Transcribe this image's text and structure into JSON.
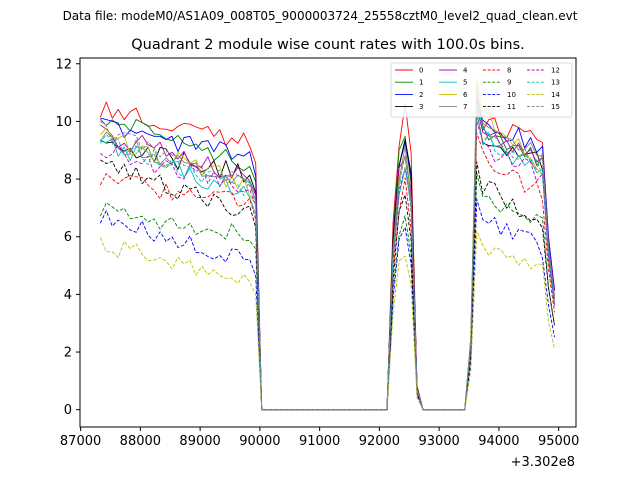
{
  "chart_data": {
    "type": "line",
    "suptitle": "Data file: modeM0/AS1A09_008T05_9000003724_25558cztM0_level2_quad_clean.evt",
    "title": "Quadrant 2 module wise count rates with 100.0s bins.",
    "xlabel": "",
    "ylabel": "",
    "x_offset_label": "+3.302e8",
    "xlim": [
      86990,
      95290
    ],
    "ylim": [
      -0.6,
      12.2
    ],
    "xticks": [
      87000,
      88000,
      89000,
      90000,
      91000,
      92000,
      93000,
      94000,
      95000
    ],
    "yticks": [
      0,
      2,
      4,
      6,
      8,
      10,
      12
    ],
    "grid": false,
    "legend_position": "top-right",
    "segments": [
      {
        "x_start": 87330,
        "x_end": 89930,
        "step": 100
      },
      {
        "x_start": 90030,
        "x_end": 92130,
        "zero": true
      },
      {
        "x_start": 92130,
        "x_end": 92630,
        "step": 100
      },
      {
        "x_start": 92730,
        "x_end": 93430,
        "zero": true
      },
      {
        "x_start": 93430,
        "x_end": 94930,
        "step": 100
      }
    ],
    "series": [
      {
        "name": "0",
        "color": "#ff0000",
        "dashed": false,
        "level_a": 10.5,
        "level_a_end": 9.2,
        "peak_b": 10.5,
        "peak_c": 11.0,
        "level_c_end": 9.2
      },
      {
        "name": "1",
        "color": "#008000",
        "dashed": false,
        "level_a": 10.2,
        "level_a_end": 8.5,
        "peak_b": 9.8,
        "peak_c": 10.8,
        "level_c_end": 8.6
      },
      {
        "name": "2",
        "color": "#0000ff",
        "dashed": false,
        "level_a": 9.9,
        "level_a_end": 8.7,
        "peak_b": 9.5,
        "peak_c": 10.8,
        "level_c_end": 9.2
      },
      {
        "name": "3",
        "color": "#000000",
        "dashed": false,
        "level_a": 9.2,
        "level_a_end": 8.1,
        "peak_b": 9.6,
        "peak_c": 10.3,
        "level_c_end": 8.5
      },
      {
        "name": "4",
        "color": "#bf00bf",
        "dashed": false,
        "level_a": 9.6,
        "level_a_end": 8.0,
        "peak_b": 9.0,
        "peak_c": 10.5,
        "level_c_end": 8.8
      },
      {
        "name": "5",
        "color": "#00bfbf",
        "dashed": false,
        "level_a": 9.3,
        "level_a_end": 7.3,
        "peak_b": 8.4,
        "peak_c": 10.7,
        "level_c_end": 8.0
      },
      {
        "name": "6",
        "color": "#bfbf00",
        "dashed": false,
        "level_a": 9.5,
        "level_a_end": 7.7,
        "peak_b": 8.8,
        "peak_c": 11.5,
        "level_c_end": 8.5
      },
      {
        "name": "7",
        "color": "#808080",
        "dashed": false,
        "level_a": 9.4,
        "level_a_end": 7.8,
        "peak_b": 9.0,
        "peak_c": 11.3,
        "level_c_end": 8.7
      },
      {
        "name": "8",
        "color": "#ff0000",
        "dashed": true,
        "level_a": 8.0,
        "level_a_end": 7.1,
        "peak_b": 7.8,
        "peak_c": 9.6,
        "level_c_end": 7.5
      },
      {
        "name": "9",
        "color": "#008000",
        "dashed": true,
        "level_a": 6.9,
        "level_a_end": 6.0,
        "peak_b": 6.8,
        "peak_c": 8.2,
        "level_c_end": 6.5
      },
      {
        "name": "10",
        "color": "#0000ff",
        "dashed": true,
        "level_a": 6.8,
        "level_a_end": 5.0,
        "peak_b": 6.2,
        "peak_c": 7.3,
        "level_c_end": 5.6
      },
      {
        "name": "11",
        "color": "#000000",
        "dashed": true,
        "level_a": 8.5,
        "level_a_end": 6.8,
        "peak_b": 7.3,
        "peak_c": 8.6,
        "level_c_end": 6.5
      },
      {
        "name": "12",
        "color": "#bf00bf",
        "dashed": true,
        "level_a": 9.0,
        "level_a_end": 7.6,
        "peak_b": 8.3,
        "peak_c": 10.0,
        "level_c_end": 8.1
      },
      {
        "name": "13",
        "color": "#00bfbf",
        "dashed": true,
        "level_a": 9.3,
        "level_a_end": 7.6,
        "peak_b": 8.6,
        "peak_c": 10.4,
        "level_c_end": 8.4
      },
      {
        "name": "14",
        "color": "#bfbf00",
        "dashed": true,
        "level_a": 5.8,
        "level_a_end": 4.3,
        "peak_b": 5.4,
        "peak_c": 6.2,
        "level_c_end": 4.7
      },
      {
        "name": "15",
        "color": "#808080",
        "dashed": true,
        "level_a": 9.7,
        "level_a_end": 7.8,
        "peak_b": 8.6,
        "peak_c": 10.3,
        "level_c_end": 8.6
      }
    ]
  }
}
